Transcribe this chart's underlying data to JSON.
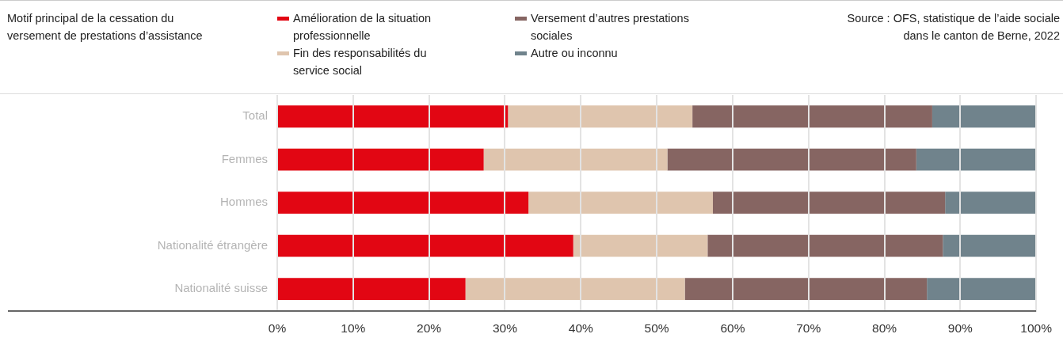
{
  "chart_data": {
    "type": "bar",
    "orientation": "horizontal",
    "stacked": true,
    "title": "Motif principal de la cessation du versement de prestations d’assistance",
    "annotations": [
      "Source : OFS, statistique de l’aide sociale dans le canton de Berne, 2022"
    ],
    "categories": [
      "Total",
      "Femmes",
      "Hommes",
      "Nationalité étrangère",
      "Nationalité suisse"
    ],
    "series": [
      {
        "name": "Amélioration de la situation professionnelle",
        "color": "#e20613",
        "values": [
          30.4,
          27.2,
          33.1,
          39.0,
          24.8
        ]
      },
      {
        "name": "Fin des responsabilités du service social",
        "color": "#dfc5ae",
        "values": [
          24.3,
          24.2,
          24.3,
          17.7,
          28.9
        ]
      },
      {
        "name": "Versement d’autres prestations sociales",
        "color": "#866562",
        "values": [
          31.6,
          32.8,
          30.6,
          31.0,
          31.9
        ]
      },
      {
        "name": "Autre ou inconnu",
        "color": "#70838c",
        "values": [
          13.7,
          15.8,
          12.0,
          12.3,
          14.4
        ]
      }
    ],
    "xlim": [
      0,
      100
    ],
    "xticks": [
      {
        "value": 0,
        "label": "0%"
      },
      {
        "value": 10,
        "label": "10%"
      },
      {
        "value": 20,
        "label": "20%"
      },
      {
        "value": 30,
        "label": "30%"
      },
      {
        "value": 40,
        "label": "40%"
      },
      {
        "value": 50,
        "label": "50%"
      },
      {
        "value": 60,
        "label": "60%"
      },
      {
        "value": 70,
        "label": "70%"
      },
      {
        "value": 80,
        "label": "80%"
      },
      {
        "value": 90,
        "label": "90%"
      },
      {
        "value": 100,
        "label": "100%"
      }
    ],
    "grid": "x",
    "legend": "top"
  }
}
